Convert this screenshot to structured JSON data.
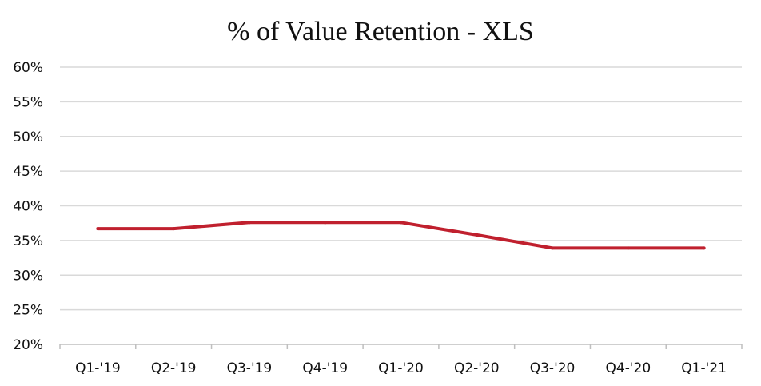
{
  "chart_data": {
    "type": "line",
    "title": "% of Value Retention - XLS",
    "xlabel": "",
    "ylabel": "",
    "categories": [
      "Q1-'19",
      "Q2-'19",
      "Q3-'19",
      "Q4-'19",
      "Q1-'20",
      "Q2-'20",
      "Q3-'20",
      "Q4-'20",
      "Q1-'21"
    ],
    "series": [
      {
        "values": [
          36.7,
          36.7,
          37.6,
          37.6,
          37.6,
          35.8,
          33.9,
          33.9,
          33.9
        ],
        "color": "#c0202e"
      }
    ],
    "ylim": [
      20,
      60
    ],
    "yticks": [
      20,
      25,
      30,
      35,
      40,
      45,
      50,
      55,
      60
    ],
    "ytick_format": "percent",
    "grid": true,
    "legend": "none"
  }
}
